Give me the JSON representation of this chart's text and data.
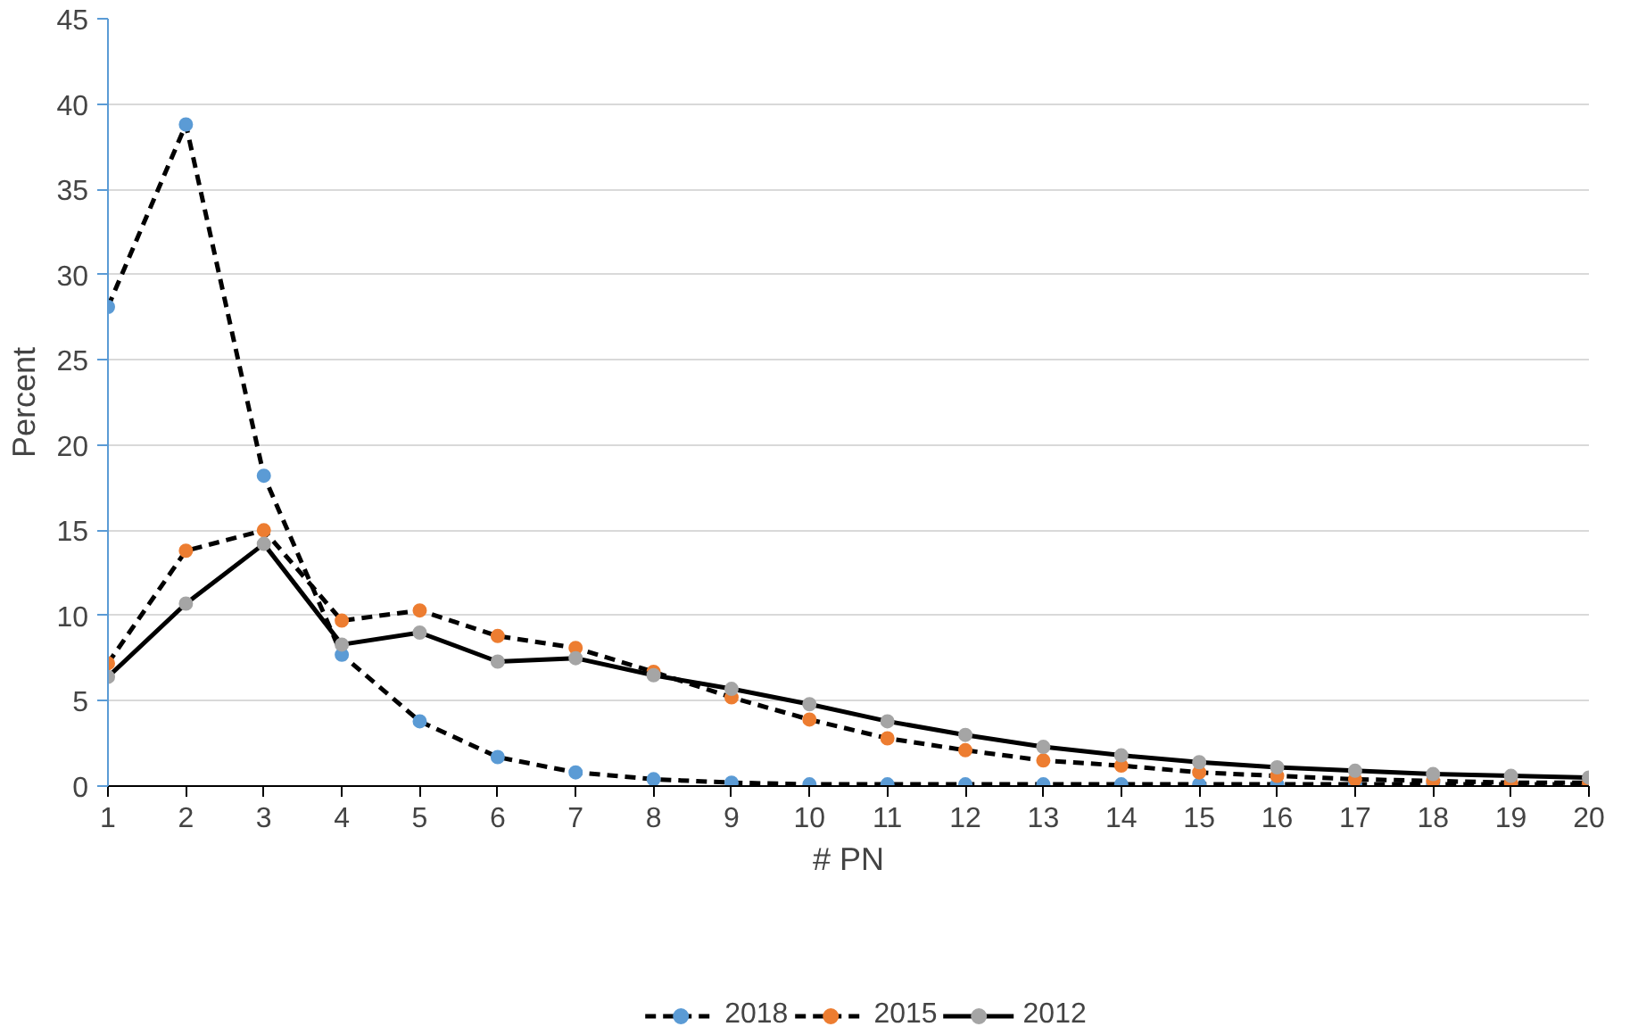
{
  "chart_data": {
    "type": "line",
    "xlabel": "# PN",
    "ylabel": "Percent",
    "x": [
      1,
      2,
      3,
      4,
      5,
      6,
      7,
      8,
      9,
      10,
      11,
      12,
      13,
      14,
      15,
      16,
      17,
      18,
      19,
      20
    ],
    "xlim": [
      1,
      20
    ],
    "xticks": [
      1,
      2,
      3,
      4,
      5,
      6,
      7,
      8,
      9,
      10,
      11,
      12,
      13,
      14,
      15,
      16,
      17,
      18,
      19,
      20
    ],
    "ylim": [
      0,
      45
    ],
    "yticks": [
      0,
      5,
      10,
      15,
      20,
      25,
      30,
      35,
      40,
      45
    ],
    "grid": "y",
    "legend": "bottom",
    "marker": "circle",
    "series": [
      {
        "name": "2018",
        "color": "#5b9bd5",
        "line_style": "dashed",
        "values": [
          28.1,
          38.8,
          18.2,
          7.7,
          3.8,
          1.7,
          0.8,
          0.4,
          0.2,
          0.1,
          0.1,
          0.1,
          0.1,
          0.1,
          0.1,
          0.1,
          0.1,
          0.1,
          0.1,
          0.1
        ]
      },
      {
        "name": "2015",
        "color": "#ed7d31",
        "line_style": "dashed",
        "values": [
          7.2,
          13.8,
          15.0,
          9.7,
          10.3,
          8.8,
          8.1,
          6.7,
          5.2,
          3.9,
          2.8,
          2.1,
          1.5,
          1.2,
          0.8,
          0.6,
          0.4,
          0.3,
          0.2,
          0.2
        ]
      },
      {
        "name": "2012",
        "color": "#a5a5a5",
        "line_style": "solid",
        "values": [
          6.4,
          10.7,
          14.2,
          8.3,
          9.0,
          7.3,
          7.5,
          6.5,
          5.7,
          4.8,
          3.8,
          3.0,
          2.3,
          1.8,
          1.4,
          1.1,
          0.9,
          0.7,
          0.6,
          0.5
        ]
      }
    ]
  }
}
